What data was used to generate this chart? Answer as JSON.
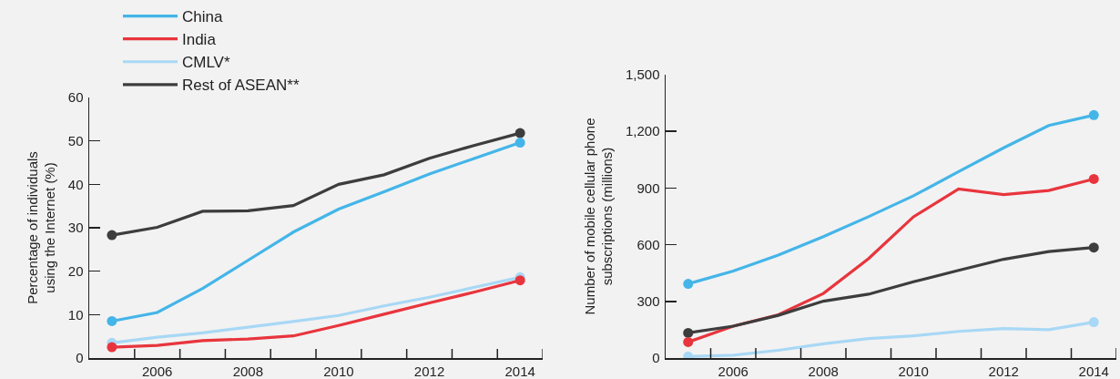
{
  "chart_data": [
    {
      "type": "line",
      "ylabel": "Percentage of individuals\nusing the Internet (%)",
      "x": [
        2005,
        2006,
        2007,
        2008,
        2009,
        2010,
        2011,
        2012,
        2013,
        2014
      ],
      "xlim": [
        2004.5,
        2014.5
      ],
      "xticks": [
        {
          "value": 2005.5,
          "label": null
        },
        2006,
        {
          "value": 2006.5,
          "label": null
        },
        {
          "value": 2007.5,
          "label": null
        },
        2008,
        {
          "value": 2008.5,
          "label": null
        },
        {
          "value": 2009.5,
          "label": null
        },
        2010,
        {
          "value": 2010.5,
          "label": null
        },
        {
          "value": 2011.5,
          "label": null
        },
        2012,
        {
          "value": 2012.5,
          "label": null
        },
        {
          "value": 2013.5,
          "label": null
        },
        2014,
        {
          "value": 2014.5,
          "label": null
        }
      ],
      "ylim": [
        0,
        60
      ],
      "yticks": [
        0,
        10,
        20,
        30,
        40,
        50,
        60
      ],
      "grid": false,
      "legend": "top",
      "line_style": "solid",
      "series": [
        {
          "name": "China",
          "color": "#44b5e8",
          "values": [
            8.5,
            10.5,
            16,
            22.5,
            29,
            34.3,
            38.3,
            42.4,
            46,
            49.6
          ]
        },
        {
          "name": "India",
          "color": "#e8353d",
          "values": [
            2.5,
            2.9,
            4,
            4.4,
            5.1,
            7.5,
            10.1,
            12.7,
            15.2,
            17.9
          ]
        },
        {
          "name": "CMLV*",
          "color": "#a8d8f5",
          "values": [
            3.5,
            4.8,
            5.8,
            7.1,
            8.4,
            9.8,
            12,
            14,
            16.3,
            18.6
          ]
        },
        {
          "name": "Rest of ASEAN**",
          "color": "#3d3d3d",
          "values": [
            28.3,
            30.1,
            33.8,
            33.9,
            35.1,
            40,
            42.2,
            46,
            49,
            51.8
          ]
        }
      ]
    },
    {
      "type": "line",
      "ylabel": "Number of mobile cellular phone\nsubscriptions (millions)",
      "x": [
        2005,
        2006,
        2007,
        2008,
        2009,
        2010,
        2011,
        2012,
        2013,
        2014
      ],
      "xlim": [
        2004.5,
        2014.5
      ],
      "xticks": [
        {
          "value": 2005.5,
          "label": null
        },
        2006,
        {
          "value": 2006.5,
          "label": null
        },
        {
          "value": 2007.5,
          "label": null
        },
        2008,
        {
          "value": 2008.5,
          "label": null
        },
        {
          "value": 2009.5,
          "label": null
        },
        2010,
        {
          "value": 2010.5,
          "label": null
        },
        {
          "value": 2011.5,
          "label": null
        },
        2012,
        {
          "value": 2012.5,
          "label": null
        },
        {
          "value": 2013.5,
          "label": null
        },
        2014,
        {
          "value": 2014.5,
          "label": null
        }
      ],
      "ylim": [
        0,
        1500
      ],
      "yticks": [
        0,
        300,
        600,
        900,
        {
          "value": 1200,
          "label": "1,200"
        },
        {
          "value": 1500,
          "label": "1,500"
        }
      ],
      "grid": false,
      "line_style": "solid",
      "series": [
        {
          "color": "#44b5e8",
          "values": [
            393,
            461,
            545,
            643,
            748,
            859,
            987,
            1113,
            1231,
            1286
          ]
        },
        {
          "color": "#e8353d",
          "values": [
            85,
            169,
            229,
            342,
            526,
            748,
            895,
            865,
            887,
            948
          ]
        },
        {
          "color": "#a8d8f5",
          "values": [
            8,
            15,
            41,
            75,
            103,
            118,
            141,
            156,
            150,
            190
          ]
        },
        {
          "color": "#3d3d3d",
          "values": [
            133,
            169,
            226,
            301,
            338,
            404,
            464,
            523,
            564,
            585
          ]
        }
      ]
    }
  ]
}
